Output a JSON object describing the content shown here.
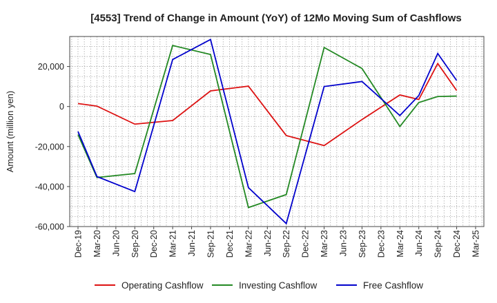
{
  "chart_data": {
    "type": "line",
    "title": "[4553]  Trend of Change in Amount (YoY) of 12Mo Moving Sum of Cashflows",
    "xlabel": "",
    "ylabel": "Amount (million yen)",
    "ylim": [
      -60000,
      35000
    ],
    "y_ticks": [
      -60000,
      -40000,
      -20000,
      0,
      20000
    ],
    "y_tick_labels": [
      "-60,000",
      "-40,000",
      "-20,000",
      "0",
      "20,000"
    ],
    "categories": [
      "Dec-19",
      "Mar-20",
      "Jun-20",
      "Sep-20",
      "Dec-20",
      "Mar-21",
      "Jun-21",
      "Sep-21",
      "Dec-21",
      "Mar-22",
      "Jun-22",
      "Sep-22",
      "Dec-22",
      "Mar-23",
      "Jun-23",
      "Sep-23",
      "Dec-23",
      "Mar-24",
      "Jun-24",
      "Sep-24",
      "Dec-24",
      "Mar-25"
    ],
    "grid": true,
    "legend_position": "bottom",
    "series": [
      {
        "name": "Operating Cashflow",
        "color": "#dd1111",
        "values": [
          1500,
          200,
          null,
          -8800,
          null,
          -7000,
          null,
          7800,
          null,
          10200,
          null,
          -14500,
          null,
          -19500,
          null,
          -6500,
          null,
          5800,
          3500,
          21500,
          8000,
          null
        ]
      },
      {
        "name": "Investing Cashflow",
        "color": "#228822",
        "values": [
          -14000,
          -35500,
          null,
          -33500,
          null,
          30500,
          null,
          26000,
          null,
          -50500,
          null,
          -44000,
          null,
          29500,
          null,
          19000,
          null,
          -10000,
          2000,
          5000,
          5200,
          null
        ]
      },
      {
        "name": "Free Cashflow",
        "color": "#0000cc",
        "values": [
          -12500,
          -35000,
          null,
          -42500,
          null,
          23500,
          null,
          33500,
          null,
          -40500,
          null,
          -58500,
          null,
          10000,
          null,
          12500,
          null,
          -4500,
          5500,
          26500,
          13000,
          null
        ]
      }
    ]
  }
}
